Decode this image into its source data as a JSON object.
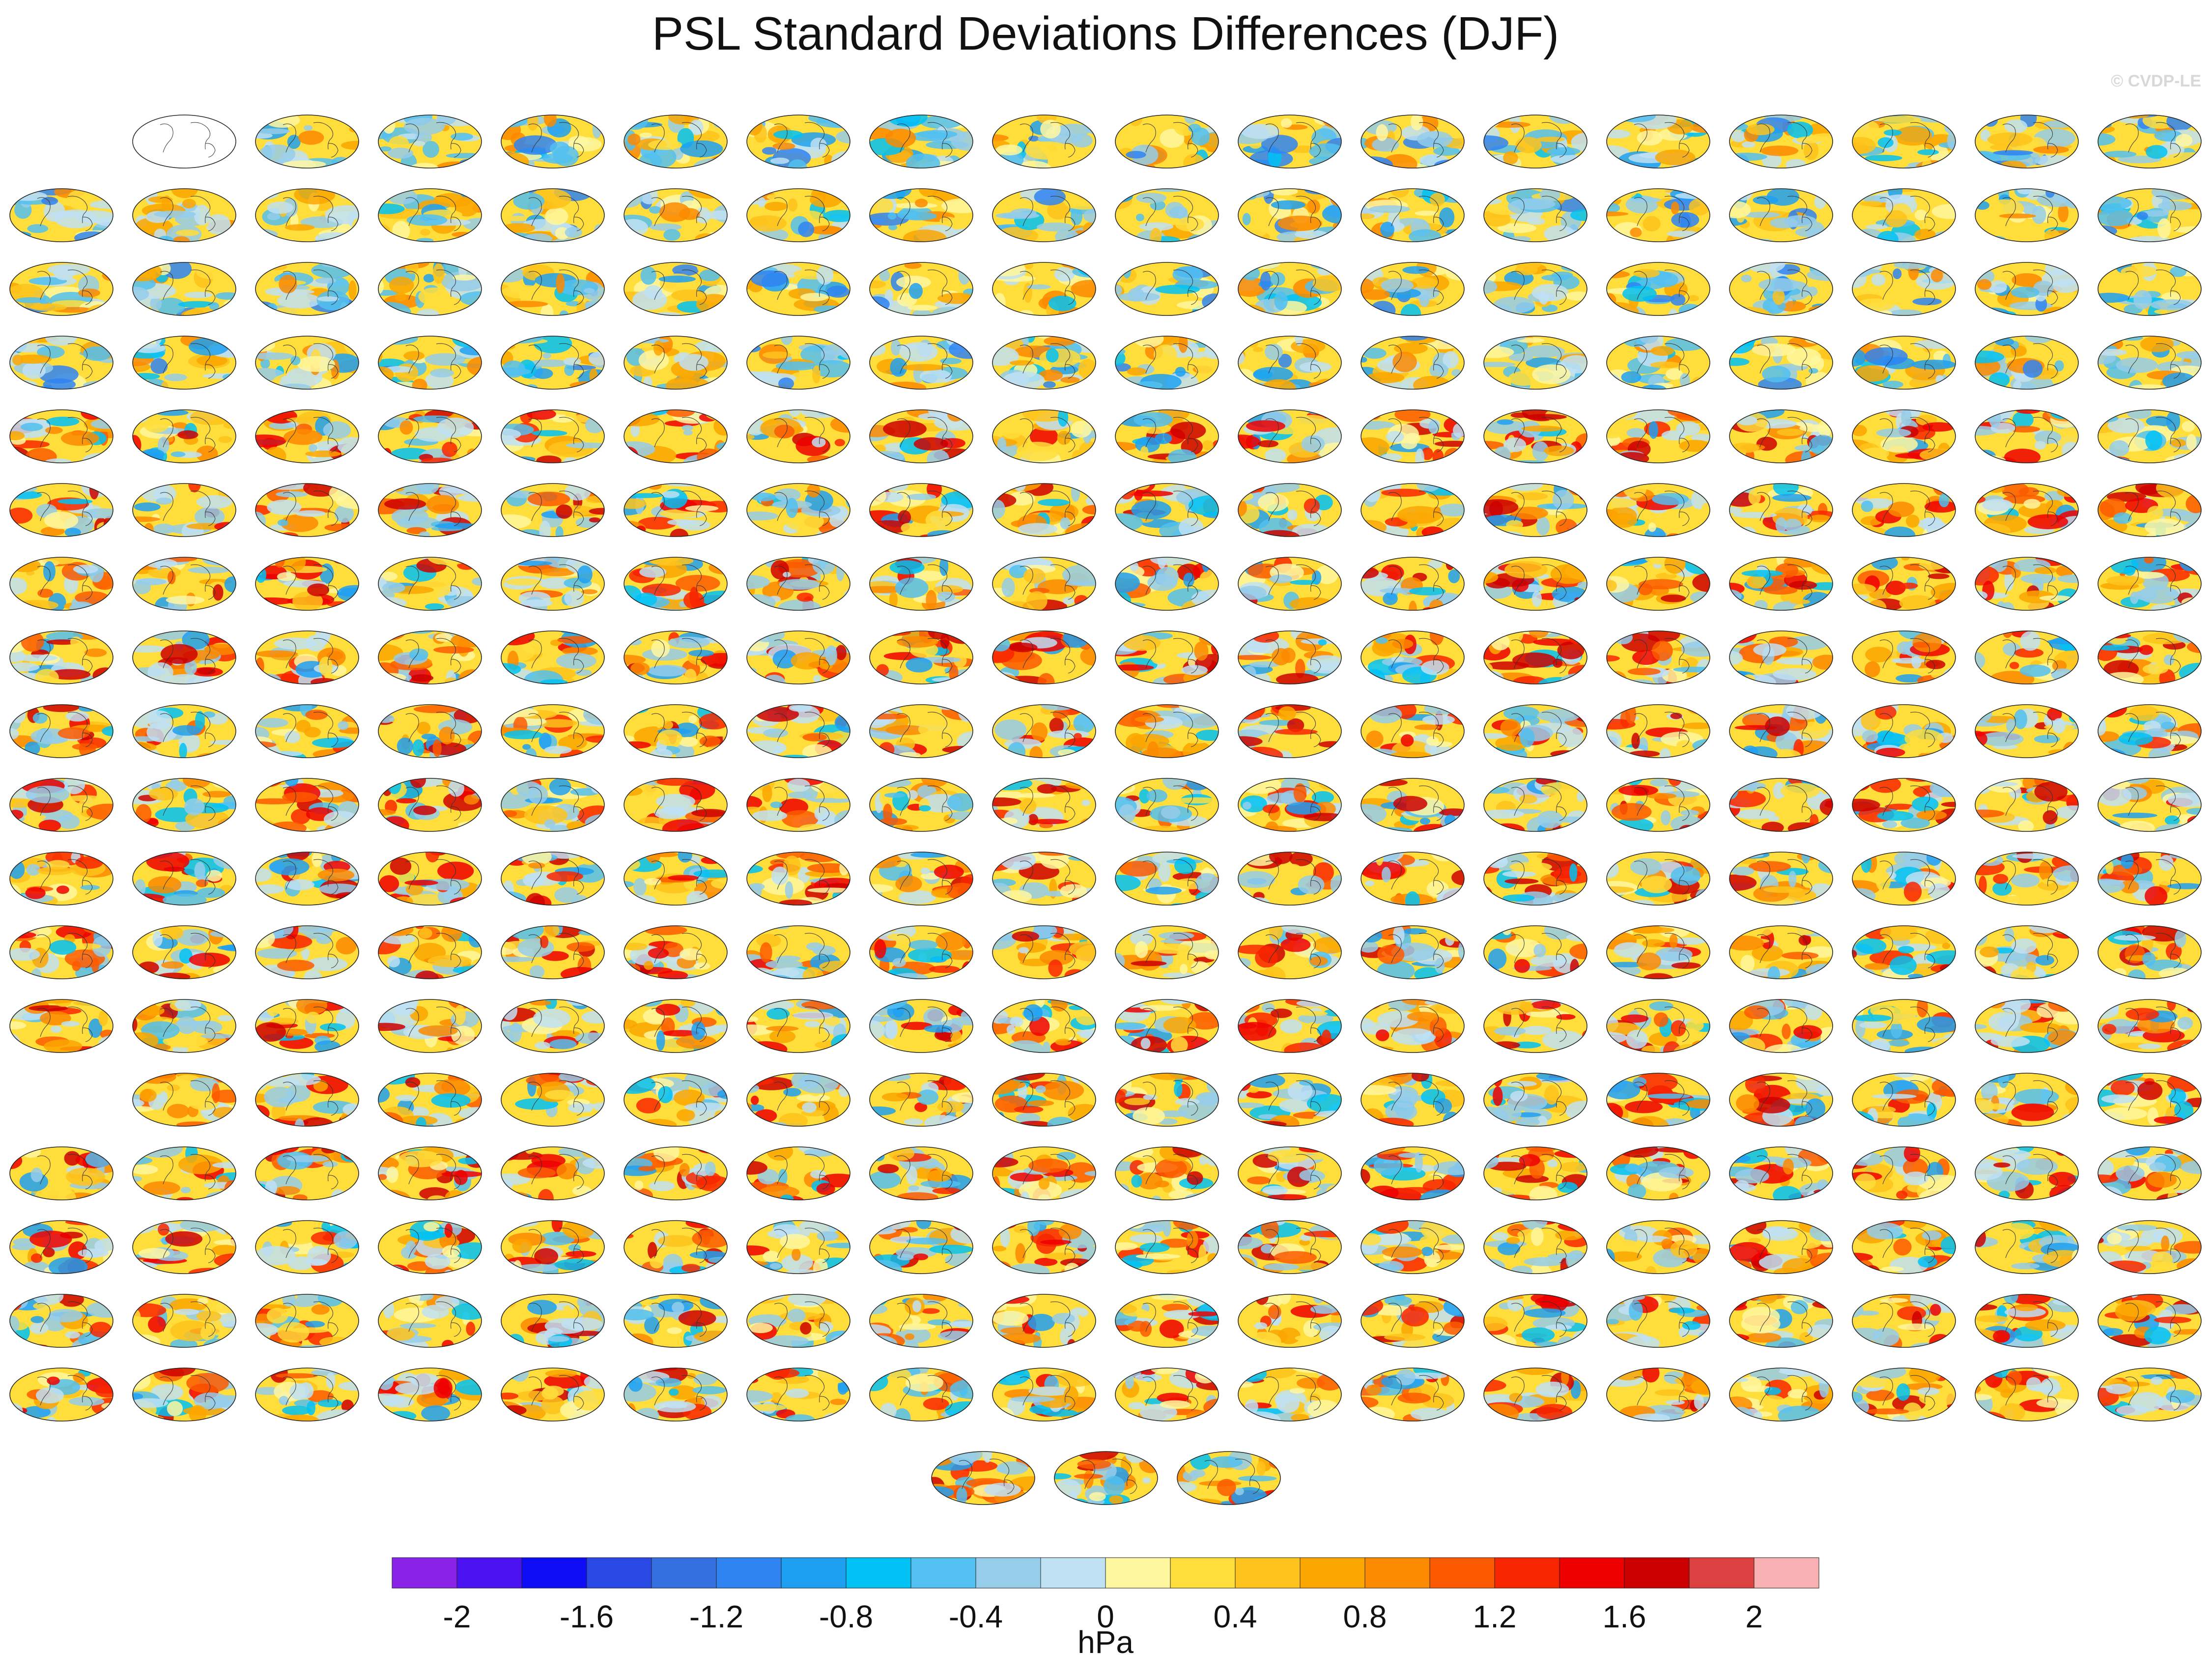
{
  "title": "PSL Standard Deviations Differences (DJF)",
  "watermark": "© CVDP-LE",
  "units": "hPa",
  "chart_data": {
    "type": "heatmap",
    "title": "PSL Standard Deviations Differences (DJF)",
    "panel_grid": {
      "rows": 18,
      "columns": 18,
      "extra_bottom_row": 3
    },
    "colorbar": {
      "colors": [
        "#8a22e8",
        "#4b13f2",
        "#0d0cf5",
        "#2a48e4",
        "#3570e0",
        "#2f84f2",
        "#1ea0f2",
        "#00c2f5",
        "#52c0f0",
        "#95cdea",
        "#bfe1f3",
        "#fff7a0",
        "#ffdd3b",
        "#fec31c",
        "#fca600",
        "#fc8a00",
        "#fb5a00",
        "#f82600",
        "#ee0000",
        "#cc0000",
        "#dc4040",
        "#f9b0b2"
      ],
      "levels": [
        -2.0,
        -1.8,
        -1.6,
        -1.4,
        -1.2,
        -1.0,
        -0.8,
        -0.6,
        -0.4,
        -0.2,
        0,
        0.2,
        0.4,
        0.6,
        0.8,
        1.0,
        1.2,
        1.4,
        1.6,
        1.8,
        2.0
      ],
      "tick_labels": [
        "-2",
        "-1.6",
        "-1.2",
        "-0.8",
        "-0.4",
        "0",
        "0.4",
        "0.8",
        "1.2",
        "1.6",
        "2"
      ]
    }
  }
}
